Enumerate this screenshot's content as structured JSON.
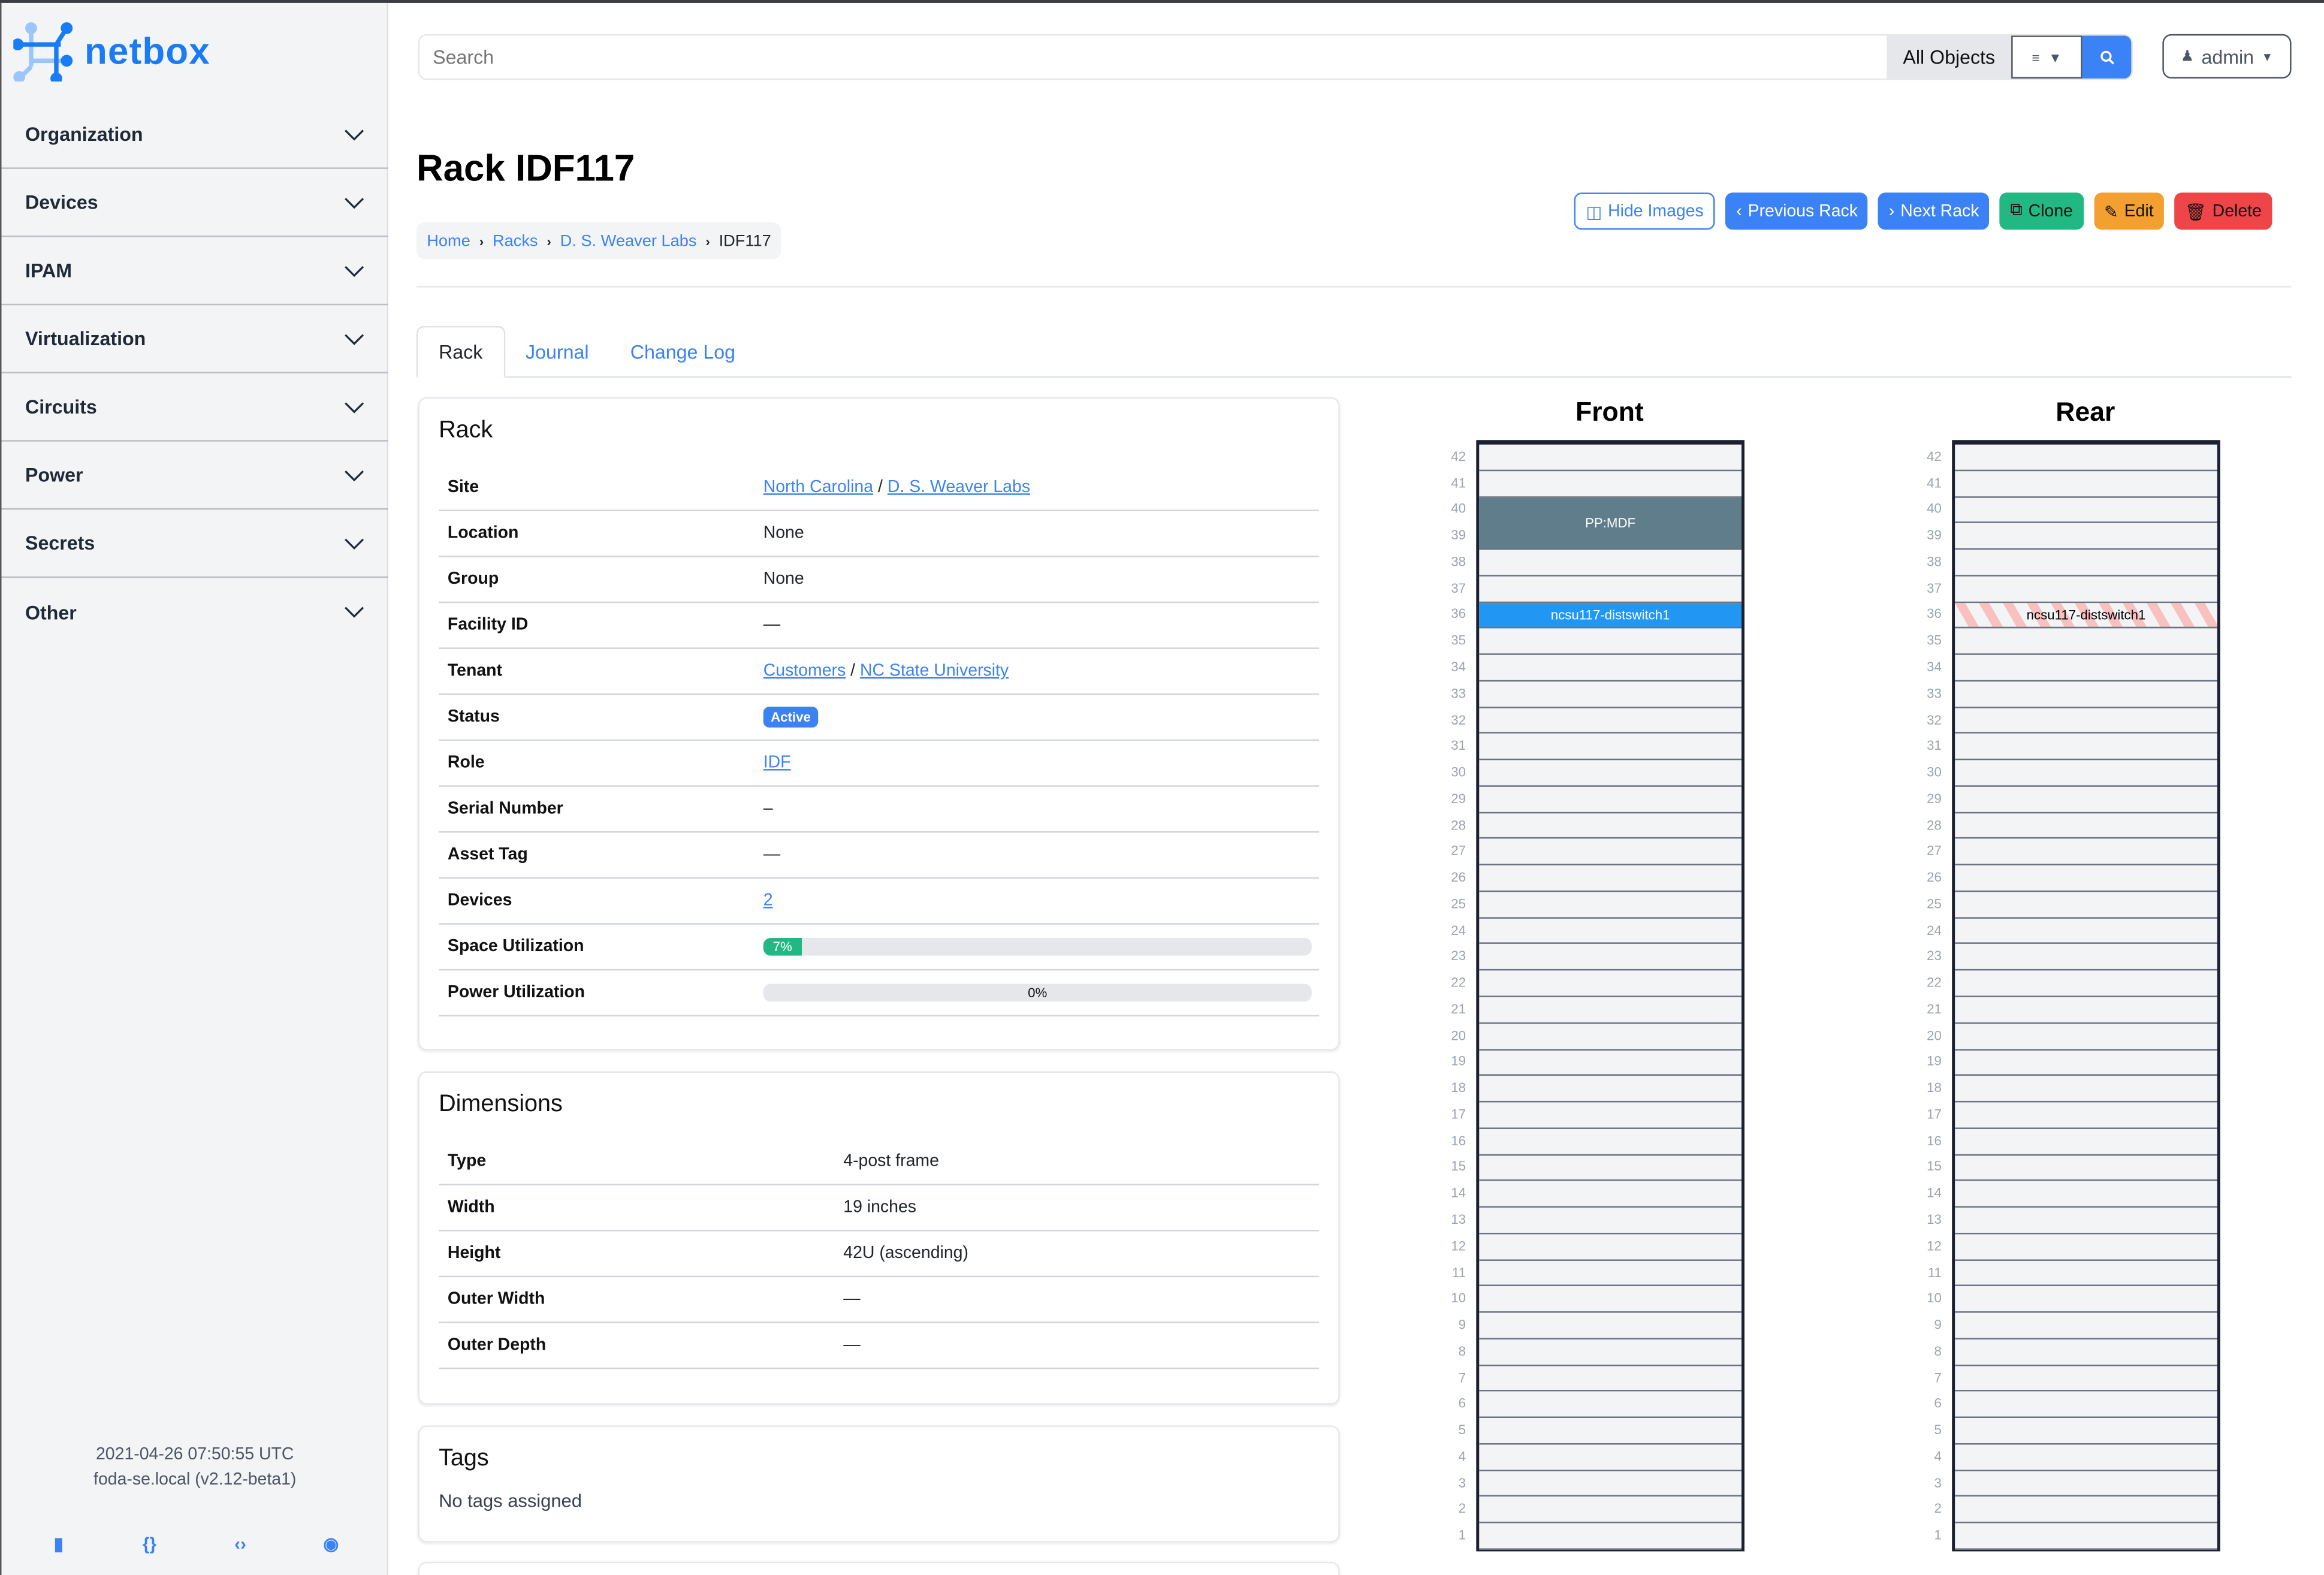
{
  "brand": {
    "name": "netbox",
    "color": "#1a7cf5"
  },
  "sidebar": {
    "items": [
      {
        "label": "Organization"
      },
      {
        "label": "Devices"
      },
      {
        "label": "IPAM"
      },
      {
        "label": "Virtualization"
      },
      {
        "label": "Circuits"
      },
      {
        "label": "Power"
      },
      {
        "label": "Secrets"
      },
      {
        "label": "Other"
      }
    ],
    "footer": {
      "timestamp": "2021-04-26 07:50:55 UTC",
      "host": "foda-se.local (v2.12-beta1)",
      "icons": [
        "book-icon",
        "braces-icon",
        "code-icon",
        "lifebuoy-icon"
      ]
    }
  },
  "search": {
    "placeholder": "Search",
    "scope": "All Objects",
    "filter_icon": "filter-icon",
    "search_icon": "search-icon"
  },
  "user": {
    "label": "admin"
  },
  "page": {
    "title": "Rack IDF117",
    "breadcrumb": [
      "Home",
      "Racks",
      "D. S. Weaver Labs",
      "IDF117"
    ]
  },
  "actions": {
    "hide_images": "Hide Images",
    "previous": "Previous Rack",
    "next": "Next Rack",
    "clone": "Clone",
    "edit": "Edit",
    "delete": "Delete"
  },
  "tabs": [
    {
      "label": "Rack",
      "active": true
    },
    {
      "label": "Journal"
    },
    {
      "label": "Change Log"
    }
  ],
  "rack_card": {
    "title": "Rack",
    "rows": {
      "site": {
        "label": "Site",
        "parts": [
          "North Carolina",
          "D. S. Weaver Labs"
        ],
        "sep": "/"
      },
      "location": {
        "label": "Location",
        "value": "None"
      },
      "group": {
        "label": "Group",
        "value": "None"
      },
      "facility": {
        "label": "Facility ID",
        "value": "—"
      },
      "tenant": {
        "label": "Tenant",
        "parts": [
          "Customers",
          "NC State University"
        ],
        "sep": "/"
      },
      "status": {
        "label": "Status",
        "value": "Active",
        "color": "#3b82f6"
      },
      "role": {
        "label": "Role",
        "value": "IDF"
      },
      "serial": {
        "label": "Serial Number",
        "value": "–"
      },
      "asset": {
        "label": "Asset Tag",
        "value": "—"
      },
      "devices": {
        "label": "Devices",
        "value": "2"
      },
      "space": {
        "label": "Space Utilization",
        "value": "7%",
        "percent": 7
      },
      "power": {
        "label": "Power Utilization",
        "value": "0%",
        "percent": 0
      }
    }
  },
  "dimensions": {
    "title": "Dimensions",
    "rows": [
      {
        "label": "Type",
        "value": "4-post frame"
      },
      {
        "label": "Width",
        "value": "19 inches"
      },
      {
        "label": "Height",
        "value": "42U (ascending)"
      },
      {
        "label": "Outer Width",
        "value": "—"
      },
      {
        "label": "Outer Depth",
        "value": "—"
      }
    ]
  },
  "tags": {
    "title": "Tags",
    "empty": "No tags assigned"
  },
  "elevations": {
    "u_height": 42,
    "faces": [
      {
        "title": "Front",
        "devices": [
          {
            "name": "PP:MDF",
            "position": 39,
            "height": 2,
            "color": "#607d8b",
            "text": "#ffffff"
          },
          {
            "name": "ncsu117-distswitch1",
            "position": 36,
            "height": 1,
            "color": "#2196f3",
            "text": "#ffffff"
          }
        ]
      },
      {
        "title": "Rear",
        "devices": [
          {
            "name": "ncsu117-distswitch1",
            "position": 36,
            "height": 1,
            "color": "#f9c0c0",
            "text": "#000000",
            "striped": true
          }
        ]
      }
    ]
  }
}
